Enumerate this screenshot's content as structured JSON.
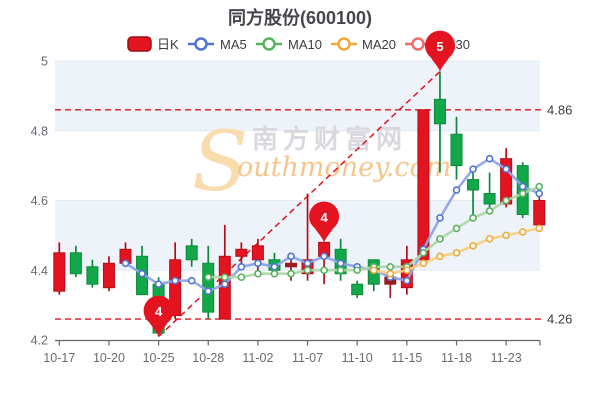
{
  "title": "同方股份(600100)",
  "legend": {
    "items": [
      {
        "label": "日K",
        "color": "#e31420"
      },
      {
        "label": "MA5",
        "color": "#4f74d2"
      },
      {
        "label": "MA10",
        "color": "#57b25e"
      },
      {
        "label": "MA20",
        "color": "#f2a93b"
      },
      {
        "label": "MA30",
        "color": "#ef6b66"
      }
    ]
  },
  "watermark": {
    "initial": "S",
    "cn": "南方财富网",
    "en": "outhmoney.com"
  },
  "chart_data": {
    "type": "candlestick",
    "title": "同方股份(600100)",
    "ylim": [
      4.2,
      5.0
    ],
    "yticks": [
      4.2,
      4.4,
      4.6,
      4.8,
      5
    ],
    "ytick_labels": [
      "4.2",
      "4.4",
      "4.6",
      "4.8",
      "5"
    ],
    "xtick_indices": [
      0,
      3,
      6,
      9,
      12,
      15,
      18,
      21,
      24,
      27
    ],
    "xtick_labels": [
      "10-17",
      "10-20",
      "10-25",
      "10-28",
      "11-02",
      "11-07",
      "11-10",
      "11-15",
      "11-18",
      "11-23"
    ],
    "candles": [
      {
        "d": "10-17",
        "o": 4.34,
        "c": 4.45,
        "h": 4.48,
        "l": 4.33,
        "k": "r"
      },
      {
        "d": "10-18",
        "o": 4.45,
        "c": 4.39,
        "h": 4.47,
        "l": 4.38,
        "k": "g"
      },
      {
        "d": "10-19",
        "o": 4.41,
        "c": 4.36,
        "h": 4.43,
        "l": 4.35,
        "k": "g"
      },
      {
        "d": "10-20",
        "o": 4.35,
        "c": 4.42,
        "h": 4.44,
        "l": 4.34,
        "k": "r"
      },
      {
        "d": "10-21",
        "o": 4.42,
        "c": 4.46,
        "h": 4.48,
        "l": 4.41,
        "k": "r"
      },
      {
        "d": "10-24",
        "o": 4.44,
        "c": 4.33,
        "h": 4.47,
        "l": 4.33,
        "k": "g"
      },
      {
        "d": "10-25",
        "o": 4.36,
        "c": 4.22,
        "h": 4.38,
        "l": 4.21,
        "k": "g"
      },
      {
        "d": "10-26",
        "o": 4.27,
        "c": 4.43,
        "h": 4.48,
        "l": 4.26,
        "k": "r"
      },
      {
        "d": "10-27",
        "o": 4.47,
        "c": 4.43,
        "h": 4.49,
        "l": 4.41,
        "k": "g"
      },
      {
        "d": "10-28",
        "o": 4.42,
        "c": 4.28,
        "h": 4.47,
        "l": 4.26,
        "k": "g"
      },
      {
        "d": "10-31",
        "o": 4.26,
        "c": 4.44,
        "h": 4.53,
        "l": 4.26,
        "k": "r"
      },
      {
        "d": "11-01",
        "o": 4.44,
        "c": 4.46,
        "h": 4.48,
        "l": 4.41,
        "k": "r"
      },
      {
        "d": "11-02",
        "o": 4.43,
        "c": 4.47,
        "h": 4.49,
        "l": 4.39,
        "k": "r"
      },
      {
        "d": "11-03",
        "o": 4.43,
        "c": 4.4,
        "h": 4.45,
        "l": 4.38,
        "k": "g"
      },
      {
        "d": "11-04",
        "o": 4.41,
        "c": 4.42,
        "h": 4.44,
        "l": 4.37,
        "k": "d"
      },
      {
        "d": "11-07",
        "o": 4.39,
        "c": 4.43,
        "h": 4.62,
        "l": 4.37,
        "k": "r"
      },
      {
        "d": "11-08",
        "o": 4.44,
        "c": 4.48,
        "h": 4.48,
        "l": 4.36,
        "k": "r"
      },
      {
        "d": "11-09",
        "o": 4.46,
        "c": 4.39,
        "h": 4.49,
        "l": 4.37,
        "k": "g"
      },
      {
        "d": "11-10",
        "o": 4.36,
        "c": 4.33,
        "h": 4.37,
        "l": 4.32,
        "k": "g"
      },
      {
        "d": "11-11",
        "o": 4.43,
        "c": 4.36,
        "h": 4.43,
        "l": 4.34,
        "k": "g"
      },
      {
        "d": "11-14",
        "o": 4.36,
        "c": 4.38,
        "h": 4.41,
        "l": 4.32,
        "k": "d"
      },
      {
        "d": "11-15",
        "o": 4.35,
        "c": 4.43,
        "h": 4.47,
        "l": 4.33,
        "k": "r"
      },
      {
        "d": "11-16",
        "o": 4.43,
        "c": 4.86,
        "h": 4.86,
        "l": 4.43,
        "k": "r"
      },
      {
        "d": "11-17",
        "o": 4.89,
        "c": 4.82,
        "h": 4.97,
        "l": 4.68,
        "k": "g"
      },
      {
        "d": "11-18",
        "o": 4.79,
        "c": 4.7,
        "h": 4.84,
        "l": 4.66,
        "k": "g"
      },
      {
        "d": "11-21",
        "o": 4.66,
        "c": 4.63,
        "h": 4.7,
        "l": 4.55,
        "k": "g"
      },
      {
        "d": "11-22",
        "o": 4.62,
        "c": 4.59,
        "h": 4.68,
        "l": 4.56,
        "k": "g"
      },
      {
        "d": "11-23",
        "o": 4.59,
        "c": 4.72,
        "h": 4.75,
        "l": 4.58,
        "k": "r"
      },
      {
        "d": "11-24",
        "o": 4.7,
        "c": 4.56,
        "h": 4.71,
        "l": 4.55,
        "k": "g"
      },
      {
        "d": "11-25",
        "o": 4.53,
        "c": 4.6,
        "h": 4.63,
        "l": 4.51,
        "k": "r"
      }
    ],
    "series": [
      {
        "name": "MA5",
        "values": [
          null,
          null,
          null,
          null,
          4.42,
          4.39,
          4.36,
          4.37,
          4.37,
          4.34,
          4.36,
          4.41,
          4.42,
          4.41,
          4.44,
          4.42,
          4.44,
          4.42,
          4.41,
          4.4,
          4.38,
          4.37,
          4.46,
          4.55,
          4.63,
          4.69,
          4.72,
          4.69,
          4.64,
          4.62
        ]
      },
      {
        "name": "MA10",
        "values": [
          null,
          null,
          null,
          null,
          null,
          null,
          null,
          null,
          null,
          4.38,
          4.38,
          4.38,
          4.39,
          4.39,
          4.39,
          4.4,
          4.4,
          4.4,
          4.4,
          4.41,
          4.41,
          4.41,
          4.45,
          4.49,
          4.52,
          4.55,
          4.57,
          4.6,
          4.62,
          4.64
        ]
      },
      {
        "name": "MA20",
        "values": [
          null,
          null,
          null,
          null,
          null,
          null,
          null,
          null,
          null,
          null,
          null,
          null,
          null,
          null,
          null,
          null,
          null,
          null,
          null,
          4.4,
          4.39,
          4.4,
          4.42,
          4.44,
          4.45,
          4.47,
          4.49,
          4.5,
          4.51,
          4.52
        ]
      }
    ],
    "ref_lines": [
      {
        "value": 4.86,
        "label": "4.86"
      },
      {
        "value": 4.26,
        "label": "4.26"
      }
    ],
    "trendline": {
      "from_index": 6,
      "from_price": 4.21,
      "to_index": 23,
      "to_price": 4.97
    },
    "markers": [
      {
        "label": "4",
        "index": 6,
        "price": 4.21
      },
      {
        "label": "4",
        "index": 16,
        "price": 4.48
      },
      {
        "label": "5",
        "index": 23,
        "price": 4.97
      }
    ],
    "colors": {
      "up": "#e31420",
      "up_stroke": "#b50d17",
      "down": "#12a849",
      "down_stroke": "#0a8a3a",
      "dark": "#9b1c1c",
      "ma5": "#4f74d2",
      "ma5_line": "#8da4e8",
      "ma10": "#57b25e",
      "ma10_line": "#aed6a8",
      "ma20": "#f2a93b",
      "ma20_line": "#f8cf82",
      "ref": "#e31420",
      "band": "#eef2f9",
      "grid": "#e3e9f4",
      "axis": "#63656a",
      "tick_text": "#696b71"
    }
  }
}
